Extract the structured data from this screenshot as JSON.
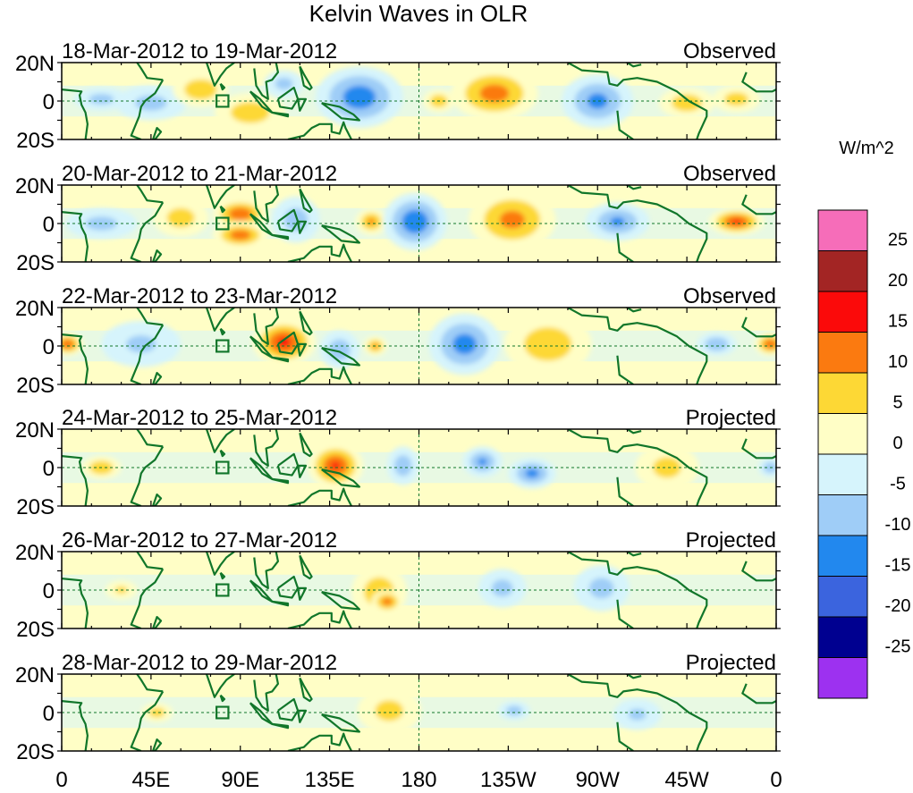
{
  "chart_data": {
    "type": "heatmap",
    "title": "Kelvin Waves in OLR",
    "units": "W/m^2",
    "x_ticks": [
      "0",
      "45E",
      "90E",
      "135E",
      "180",
      "135W",
      "90W",
      "45W",
      "0"
    ],
    "x_range_deg_east": [
      0,
      360
    ],
    "y_ticks": [
      "20N",
      "0",
      "20S"
    ],
    "y_range_deg": [
      -20,
      20
    ],
    "colorbar": {
      "levels": [
        -25,
        -20,
        -15,
        -10,
        -5,
        0,
        5,
        10,
        15,
        20,
        25
      ],
      "tick_labels": [
        "25",
        "20",
        "15",
        "10",
        "5",
        "0",
        "-5",
        "-10",
        "-15",
        "-20",
        "-25"
      ],
      "colors": [
        "#9d31f0",
        "#000090",
        "#3b64de",
        "#2288ee",
        "#9fcdf7",
        "#d6f4fc",
        "#fffec6",
        "#fdd835",
        "#fb7a10",
        "#fb0a0a",
        "#a32524",
        "#f66db9"
      ]
    },
    "panels": [
      {
        "label": "18-Mar-2012 to 19-Mar-2012",
        "status": "Observed",
        "anomalies": [
          {
            "lon": 20,
            "lat": 1,
            "dlon": 14,
            "dlat": 6,
            "value": -6
          },
          {
            "lon": 45,
            "lat": -1,
            "dlon": 18,
            "dlat": 9,
            "value": -6
          },
          {
            "lon": 70,
            "lat": 6,
            "dlon": 14,
            "dlat": 9,
            "value": 9
          },
          {
            "lon": 95,
            "lat": -6,
            "dlon": 18,
            "dlat": 10,
            "value": 8
          },
          {
            "lon": 112,
            "lat": 9,
            "dlon": 10,
            "dlat": 7,
            "value": -6
          },
          {
            "lon": 150,
            "lat": 2,
            "dlon": 22,
            "dlat": 16,
            "value": -13
          },
          {
            "lon": 190,
            "lat": 0,
            "dlon": 8,
            "dlat": 6,
            "value": 8
          },
          {
            "lon": 218,
            "lat": 4,
            "dlon": 22,
            "dlat": 14,
            "value": 12
          },
          {
            "lon": 270,
            "lat": 0,
            "dlon": 18,
            "dlat": 14,
            "value": -11
          },
          {
            "lon": 315,
            "lat": -1,
            "dlon": 14,
            "dlat": 8,
            "value": 8
          },
          {
            "lon": 340,
            "lat": 1,
            "dlon": 12,
            "dlat": 7,
            "value": 7
          }
        ]
      },
      {
        "label": "20-Mar-2012 to 21-Mar-2012",
        "status": "Observed",
        "anomalies": [
          {
            "lon": 20,
            "lat": 0,
            "dlon": 18,
            "dlat": 8,
            "value": -6
          },
          {
            "lon": 60,
            "lat": 3,
            "dlon": 14,
            "dlat": 10,
            "value": 7
          },
          {
            "lon": 90,
            "lat": 5,
            "dlon": 14,
            "dlat": 8,
            "value": 14
          },
          {
            "lon": 90,
            "lat": -6,
            "dlon": 14,
            "dlat": 7,
            "value": 13
          },
          {
            "lon": 118,
            "lat": 2,
            "dlon": 12,
            "dlat": 12,
            "value": -7
          },
          {
            "lon": 156,
            "lat": 1,
            "dlon": 8,
            "dlat": 7,
            "value": 10
          },
          {
            "lon": 178,
            "lat": 1,
            "dlon": 16,
            "dlat": 15,
            "value": -14
          },
          {
            "lon": 227,
            "lat": 2,
            "dlon": 22,
            "dlat": 16,
            "value": 11
          },
          {
            "lon": 280,
            "lat": 1,
            "dlon": 16,
            "dlat": 10,
            "value": -10
          },
          {
            "lon": 340,
            "lat": 1,
            "dlon": 14,
            "dlat": 7,
            "value": 15
          }
        ]
      },
      {
        "label": "22-Mar-2012 to 23-Mar-2012",
        "status": "Observed",
        "anomalies": [
          {
            "lon": 3,
            "lat": 1,
            "dlon": 8,
            "dlat": 6,
            "value": 14
          },
          {
            "lon": 357,
            "lat": 1,
            "dlon": 8,
            "dlat": 6,
            "value": 14
          },
          {
            "lon": 40,
            "lat": 1,
            "dlon": 20,
            "dlat": 12,
            "value": -5
          },
          {
            "lon": 112,
            "lat": 2,
            "dlon": 16,
            "dlat": 12,
            "value": 16
          },
          {
            "lon": 140,
            "lat": -2,
            "dlon": 10,
            "dlat": 10,
            "value": -8
          },
          {
            "lon": 158,
            "lat": 0,
            "dlon": 6,
            "dlat": 5,
            "value": 10
          },
          {
            "lon": 203,
            "lat": 1,
            "dlon": 18,
            "dlat": 16,
            "value": -12
          },
          {
            "lon": 245,
            "lat": 1,
            "dlon": 22,
            "dlat": 16,
            "value": 8
          },
          {
            "lon": 330,
            "lat": 1,
            "dlon": 10,
            "dlat": 6,
            "value": -9
          }
        ]
      },
      {
        "label": "24-Mar-2012 to 25-Mar-2012",
        "status": "Projected",
        "anomalies": [
          {
            "lon": 20,
            "lat": 0,
            "dlon": 10,
            "dlat": 6,
            "value": 9
          },
          {
            "lon": 138,
            "lat": 1,
            "dlon": 14,
            "dlat": 12,
            "value": 15
          },
          {
            "lon": 172,
            "lat": 1,
            "dlon": 8,
            "dlat": 10,
            "value": -8
          },
          {
            "lon": 212,
            "lat": 3,
            "dlon": 10,
            "dlat": 8,
            "value": -10
          },
          {
            "lon": 237,
            "lat": -3,
            "dlon": 12,
            "dlat": 8,
            "value": -11
          },
          {
            "lon": 305,
            "lat": 0,
            "dlon": 16,
            "dlat": 12,
            "value": 6
          },
          {
            "lon": 357,
            "lat": 0,
            "dlon": 6,
            "dlat": 5,
            "value": -8
          }
        ]
      },
      {
        "label": "26-Mar-2012 to 27-Mar-2012",
        "status": "Projected",
        "anomalies": [
          {
            "lon": 30,
            "lat": 0,
            "dlon": 8,
            "dlat": 5,
            "value": 5
          },
          {
            "lon": 160,
            "lat": -1,
            "dlon": 14,
            "dlat": 14,
            "value": 8
          },
          {
            "lon": 164,
            "lat": -6,
            "dlon": 8,
            "dlat": 6,
            "value": 12
          },
          {
            "lon": 222,
            "lat": 1,
            "dlon": 12,
            "dlat": 10,
            "value": -6
          },
          {
            "lon": 272,
            "lat": 1,
            "dlon": 14,
            "dlat": 12,
            "value": -6
          }
        ]
      },
      {
        "label": "28-Mar-2012 to 29-Mar-2012",
        "status": "Projected",
        "anomalies": [
          {
            "lon": 48,
            "lat": 0,
            "dlon": 8,
            "dlat": 5,
            "value": 7
          },
          {
            "lon": 165,
            "lat": 1,
            "dlon": 16,
            "dlat": 12,
            "value": 6
          },
          {
            "lon": 228,
            "lat": 1,
            "dlon": 8,
            "dlat": 5,
            "value": -7
          },
          {
            "lon": 290,
            "lat": -1,
            "dlon": 12,
            "dlat": 8,
            "value": -5
          }
        ]
      }
    ]
  }
}
